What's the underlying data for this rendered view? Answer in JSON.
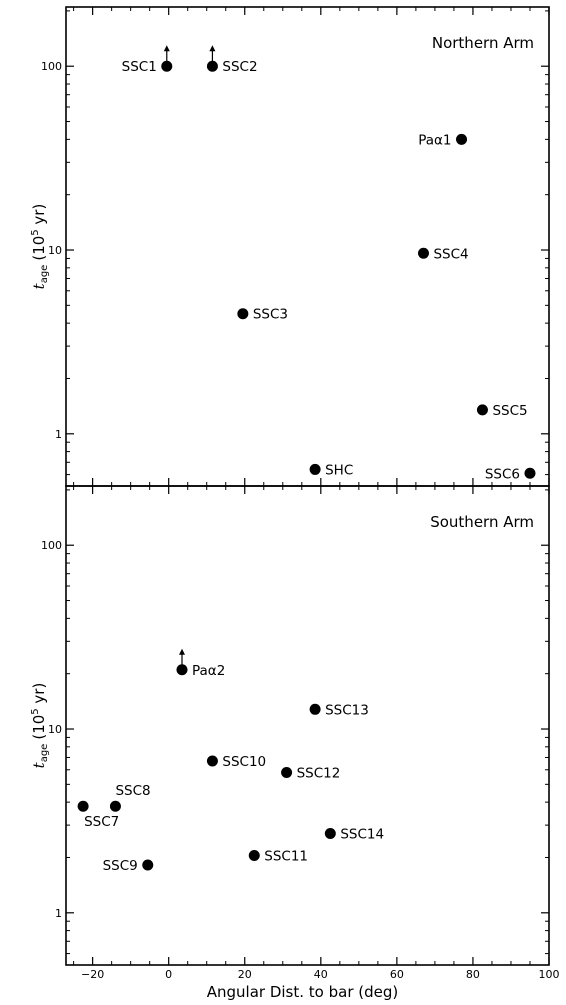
{
  "chart_data": [
    {
      "type": "scatter",
      "title": "Northern Arm",
      "xlabel": "Angular Dist. to bar (deg)",
      "ylabel": {
        "symbol": "t",
        "subscript": "age",
        "unit": "(10",
        "exponent": "5",
        "unit_end": " yr)"
      },
      "xlim": [
        -27,
        100
      ],
      "ylim": [
        0.52,
        210
      ],
      "yscale": "log",
      "xticks": [
        -20,
        0,
        20,
        40,
        60,
        80,
        100
      ],
      "yticks": [
        1,
        10,
        100
      ],
      "yticklabels": [
        "1",
        "10",
        "100"
      ],
      "points": [
        {
          "name": "SSC1",
          "x": -0.5,
          "y": 100,
          "lower_limit": true,
          "label_side": "left"
        },
        {
          "name": "SSC2",
          "x": 11.5,
          "y": 100,
          "lower_limit": true,
          "label_side": "right"
        },
        {
          "name": "Paα1",
          "x": 77,
          "y": 40,
          "lower_limit": false,
          "label_side": "left"
        },
        {
          "name": "SSC4",
          "x": 67,
          "y": 9.6,
          "lower_limit": false,
          "label_side": "right"
        },
        {
          "name": "SSC3",
          "x": 19.5,
          "y": 4.5,
          "lower_limit": false,
          "label_side": "right"
        },
        {
          "name": "SSC5",
          "x": 82.5,
          "y": 1.35,
          "lower_limit": false,
          "label_side": "right"
        },
        {
          "name": "SHC",
          "x": 38.5,
          "y": 0.64,
          "lower_limit": false,
          "label_side": "right"
        },
        {
          "name": "SSC6",
          "x": 95,
          "y": 0.61,
          "lower_limit": false,
          "label_side": "left"
        }
      ]
    },
    {
      "type": "scatter",
      "title": "Southern Arm",
      "xlabel": "Angular Dist. to bar (deg)",
      "ylabel": {
        "symbol": "t",
        "subscript": "age",
        "unit": "(10",
        "exponent": "5",
        "unit_end": " yr)"
      },
      "xlim": [
        -27,
        100
      ],
      "ylim": [
        0.52,
        210
      ],
      "yscale": "log",
      "xticks": [
        -20,
        0,
        20,
        40,
        60,
        80,
        100
      ],
      "xticklabels": [
        "−20",
        "0",
        "20",
        "40",
        "60",
        "80",
        "100"
      ],
      "yticks": [
        1,
        10,
        100
      ],
      "yticklabels": [
        "1",
        "10",
        "100"
      ],
      "points": [
        {
          "name": "Paα2",
          "x": 3.5,
          "y": 21,
          "lower_limit": true,
          "label_side": "right"
        },
        {
          "name": "SSC13",
          "x": 38.5,
          "y": 12.8,
          "lower_limit": false,
          "label_side": "right"
        },
        {
          "name": "SSC10",
          "x": 11.5,
          "y": 6.7,
          "lower_limit": false,
          "label_side": "right"
        },
        {
          "name": "SSC12",
          "x": 31,
          "y": 5.8,
          "lower_limit": false,
          "label_side": "right"
        },
        {
          "name": "SSC8",
          "x": -14,
          "y": 3.8,
          "lower_limit": false,
          "label_side": "above-right"
        },
        {
          "name": "SSC7",
          "x": -22.5,
          "y": 3.8,
          "lower_limit": false,
          "label_side": "below-right"
        },
        {
          "name": "SSC14",
          "x": 42.5,
          "y": 2.7,
          "lower_limit": false,
          "label_side": "right"
        },
        {
          "name": "SSC11",
          "x": 22.5,
          "y": 2.05,
          "lower_limit": false,
          "label_side": "right"
        },
        {
          "name": "SSC9",
          "x": -5.5,
          "y": 1.82,
          "lower_limit": false,
          "label_side": "left"
        }
      ]
    }
  ]
}
